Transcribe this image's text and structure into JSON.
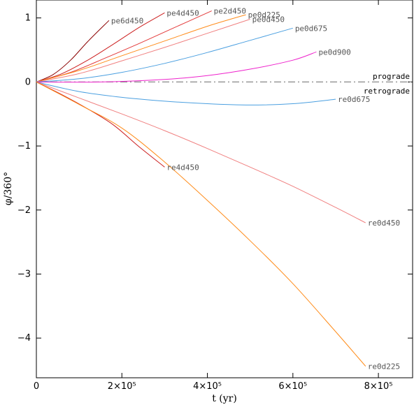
{
  "chart_data": {
    "type": "line",
    "title": "",
    "xlabel": "t (yr)",
    "ylabel": "φ/360°",
    "xlim": [
      0,
      880000
    ],
    "ylim": [
      -4.62,
      1.28
    ],
    "x_ticks": [
      0,
      200000,
      400000,
      600000,
      800000
    ],
    "x_tick_labels": [
      "0",
      "2×10⁵",
      "4×10⁵",
      "6×10⁵",
      "8×10⁵"
    ],
    "y_ticks": [
      1,
      0,
      -1,
      -2,
      -3,
      -4
    ],
    "y_tick_labels": [
      "1",
      "0",
      "−1",
      "−2",
      "−3",
      "−4"
    ],
    "grid": false,
    "annotations": [
      {
        "text": "prograde",
        "x": 880000,
        "y": 0.09
      },
      {
        "text": "retrograde",
        "x": 880000,
        "y": -0.14
      }
    ],
    "reference_line": {
      "y": 0,
      "style": "dash-dot",
      "color": "#888888"
    },
    "series": [
      {
        "name": "pe6d450",
        "color": "#8b0000",
        "x": [
          0,
          40000,
          80000,
          120000,
          170000
        ],
        "y": [
          0,
          0.12,
          0.34,
          0.63,
          0.96
        ]
      },
      {
        "name": "pe4d450",
        "color": "#cc1f1f",
        "x": [
          0,
          60000,
          120000,
          180000,
          240000,
          300000
        ],
        "y": [
          0,
          0.13,
          0.34,
          0.59,
          0.85,
          1.08
        ]
      },
      {
        "name": "pe2d450",
        "color": "#e33a3a",
        "x": [
          0,
          80000,
          160000,
          240000,
          320000,
          410000
        ],
        "y": [
          0,
          0.15,
          0.37,
          0.6,
          0.84,
          1.11
        ]
      },
      {
        "name": "pe0d225",
        "color": "#ff8c1a",
        "x": [
          0,
          100000,
          200000,
          300000,
          400000,
          490000
        ],
        "y": [
          0,
          0.18,
          0.41,
          0.64,
          0.87,
          1.05
        ]
      },
      {
        "name": "pe0d450",
        "color": "#f08080",
        "x": [
          0,
          100000,
          200000,
          300000,
          400000,
          500000
        ],
        "y": [
          0,
          0.13,
          0.33,
          0.54,
          0.76,
          0.98
        ]
      },
      {
        "name": "pe0d675",
        "color": "#4a9fe0",
        "x": [
          0,
          100000,
          200000,
          300000,
          400000,
          500000,
          600000
        ],
        "y": [
          0,
          0.05,
          0.15,
          0.29,
          0.46,
          0.65,
          0.84
        ]
      },
      {
        "name": "pe0d900",
        "color": "#ee22cc",
        "x": [
          0,
          150000,
          300000,
          400000,
          500000,
          600000,
          655000
        ],
        "y": [
          0,
          0.0,
          0.04,
          0.1,
          0.2,
          0.34,
          0.47
        ]
      },
      {
        "name": "re0d675",
        "color": "#4a9fe0",
        "x": [
          0,
          100000,
          200000,
          300000,
          400000,
          500000,
          600000,
          700000
        ],
        "y": [
          0,
          -0.15,
          -0.24,
          -0.3,
          -0.34,
          -0.36,
          -0.34,
          -0.27
        ]
      },
      {
        "name": "re0d450",
        "color": "#f08080",
        "x": [
          0,
          100000,
          200000,
          300000,
          400000,
          500000,
          600000,
          700000,
          770000
        ],
        "y": [
          0,
          -0.25,
          -0.5,
          -0.76,
          -1.04,
          -1.33,
          -1.63,
          -1.96,
          -2.2
        ]
      },
      {
        "name": "re4d450",
        "color": "#cc1f1f",
        "x": [
          0,
          60000,
          120000,
          180000,
          240000,
          300000
        ],
        "y": [
          0,
          -0.2,
          -0.42,
          -0.67,
          -1.01,
          -1.33
        ]
      },
      {
        "name": "re0d225",
        "color": "#ff8c1a",
        "x": [
          0,
          100000,
          200000,
          300000,
          400000,
          500000,
          600000,
          700000,
          770000
        ],
        "y": [
          0,
          -0.35,
          -0.72,
          -1.25,
          -1.85,
          -2.48,
          -3.15,
          -3.9,
          -4.44
        ]
      }
    ]
  }
}
